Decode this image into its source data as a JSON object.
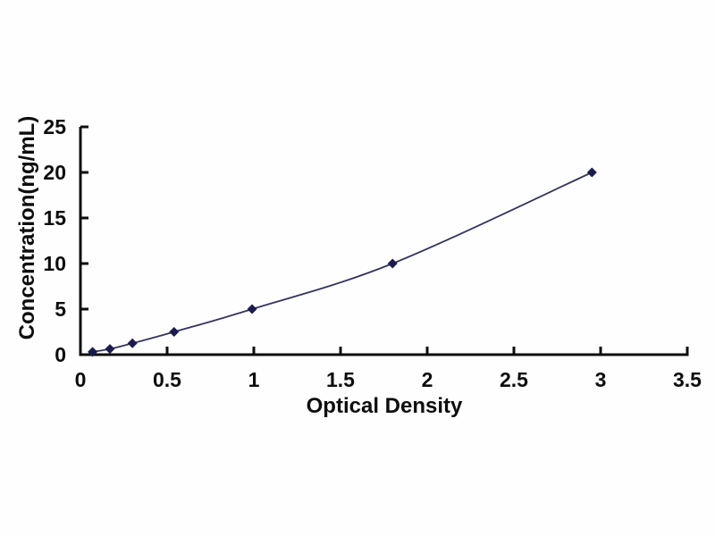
{
  "figure": {
    "background": "#fefefe",
    "axis_color": "#0d0d0d",
    "line_color": "#34345f",
    "marker_color": "#1b1b4f",
    "marker_shape": "diamond"
  },
  "chart_data": {
    "type": "line",
    "title": "",
    "xlabel": "Optical Density",
    "ylabel": "Concentration(ng/mL)",
    "x": [
      0.07,
      0.17,
      0.3,
      0.54,
      0.99,
      1.8,
      2.95
    ],
    "y": [
      0.31,
      0.63,
      1.25,
      2.5,
      5,
      10,
      20
    ],
    "xlim": [
      0,
      3.5
    ],
    "ylim": [
      0,
      25
    ],
    "x_ticks": [
      0,
      0.5,
      1,
      1.5,
      2,
      2.5,
      3,
      3.5
    ],
    "x_tick_labels": [
      "0",
      "0.5",
      "1",
      "1.5",
      "2",
      "2.5",
      "3",
      "3.5"
    ],
    "y_ticks": [
      0,
      5,
      10,
      15,
      20,
      25
    ],
    "y_tick_labels": [
      "0",
      "5",
      "10",
      "15",
      "20",
      "25"
    ],
    "grid": false,
    "legend": false,
    "curve_style": "smooth"
  }
}
